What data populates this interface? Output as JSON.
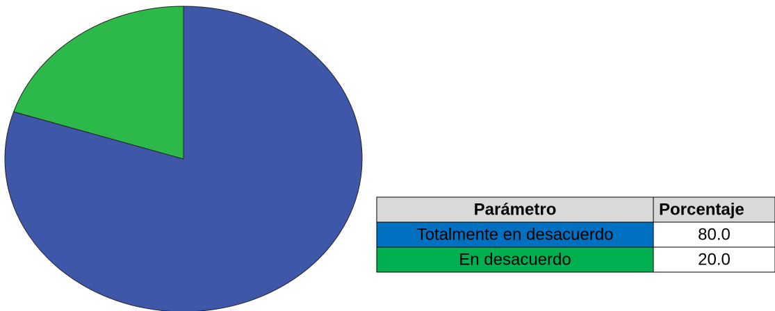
{
  "chart_data": {
    "type": "pie",
    "categories": [
      "Totalmente en desacuerdo",
      "En desacuerdo"
    ],
    "values": [
      80,
      20
    ],
    "value_labels": [
      "80.0",
      "20.0"
    ],
    "colors": [
      "#3f57a8",
      "#2db84a"
    ],
    "table": {
      "columns": [
        "Parámetro",
        "Porcentaje"
      ],
      "header_color": "#d9d9d9",
      "row_colors": [
        "#0070c0",
        "#00b050"
      ]
    }
  }
}
